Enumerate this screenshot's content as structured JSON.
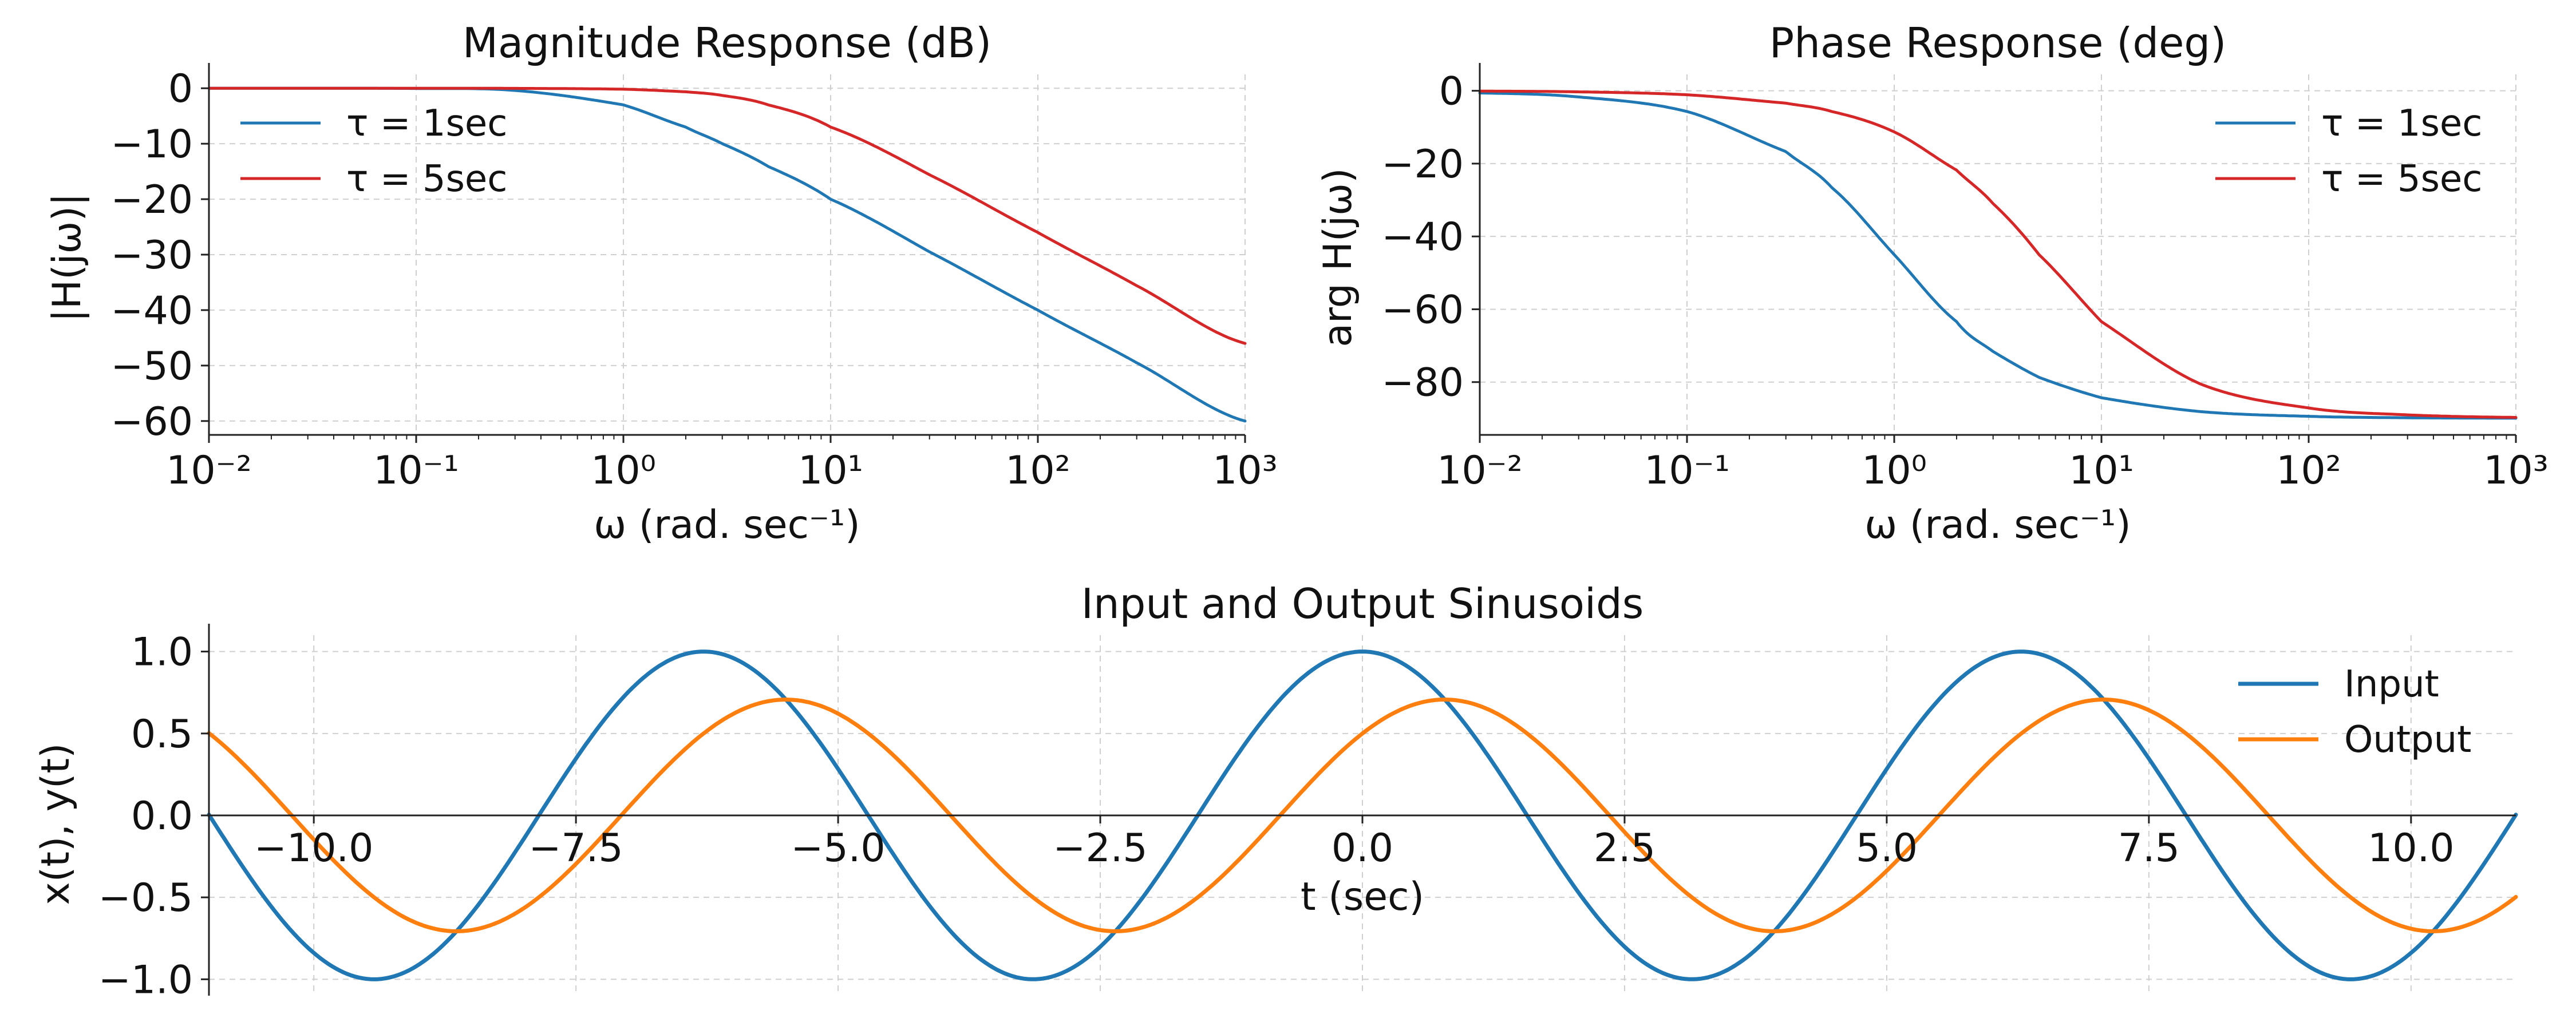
{
  "chart_data": [
    {
      "id": "magnitude",
      "type": "line",
      "title": "Magnitude Response (dB)",
      "xlabel": "ω (rad. sec⁻¹)",
      "ylabel": "|H(jω)|",
      "xscale": "log",
      "xlim": [
        0.01,
        1000
      ],
      "ylim": [
        -62.5,
        2.5
      ],
      "xticks": [
        0.01,
        0.1,
        1,
        10,
        100,
        1000
      ],
      "xtick_labels": [
        "10⁻²",
        "10⁻¹",
        "10⁰",
        "10¹",
        "10²",
        "10³"
      ],
      "yticks": [
        0,
        -10,
        -20,
        -30,
        -40,
        -50,
        -60
      ],
      "ytick_labels": [
        "0",
        "−10",
        "−20",
        "−30",
        "−40",
        "−50",
        "−60"
      ],
      "grid": true,
      "legend": "top-left",
      "series": [
        {
          "name": "τ = 1sec",
          "color": "#1f77b4",
          "x": [
            0.01,
            0.1,
            0.3,
            1,
            2,
            3,
            5,
            10,
            30,
            100,
            300,
            1000
          ],
          "y": [
            0,
            -0.04,
            -0.4,
            -3.0,
            -7.0,
            -10.0,
            -14.1,
            -20.0,
            -29.5,
            -40.0,
            -49.5,
            -60.0
          ]
        },
        {
          "name": "τ = 5sec",
          "color": "#d62728",
          "x": [
            0.01,
            0.1,
            0.3,
            1,
            2,
            3,
            5,
            10,
            30,
            100,
            300,
            1000
          ],
          "y": [
            0,
            -0.01,
            -0.02,
            -0.17,
            -0.64,
            -1.3,
            -3.0,
            -7.0,
            -15.6,
            -26.0,
            -35.6,
            -46.0
          ]
        }
      ]
    },
    {
      "id": "phase",
      "type": "line",
      "title": "Phase Response (deg)",
      "xlabel": "ω (rad. sec⁻¹)",
      "ylabel": "arg H(jω)",
      "xscale": "log",
      "xlim": [
        0.01,
        1000
      ],
      "ylim": [
        -94.5,
        4.5
      ],
      "xticks": [
        0.01,
        0.1,
        1,
        10,
        100,
        1000
      ],
      "xtick_labels": [
        "10⁻²",
        "10⁻¹",
        "10⁰",
        "10¹",
        "10²",
        "10³"
      ],
      "yticks": [
        0,
        -20,
        -40,
        -60,
        -80
      ],
      "ytick_labels": [
        "0",
        "−20",
        "−40",
        "−60",
        "−80"
      ],
      "grid": true,
      "legend": "top-right",
      "series": [
        {
          "name": "τ = 1sec",
          "color": "#1f77b4",
          "x": [
            0.01,
            0.03,
            0.1,
            0.3,
            0.5,
            1,
            2,
            3,
            5,
            10,
            30,
            100,
            300,
            1000
          ],
          "y": [
            -0.6,
            -1.7,
            -5.7,
            -16.7,
            -26.6,
            -45.0,
            -63.4,
            -71.6,
            -78.7,
            -84.3,
            -88.1,
            -89.4,
            -89.8,
            -89.9
          ]
        },
        {
          "name": "τ = 5sec",
          "color": "#d62728",
          "x": [
            0.01,
            0.03,
            0.1,
            0.3,
            0.5,
            1,
            2,
            3,
            5,
            10,
            30,
            100,
            300,
            1000
          ],
          "y": [
            -0.1,
            -0.3,
            -1.1,
            -3.4,
            -5.7,
            -11.3,
            -21.8,
            -31.0,
            -45.0,
            -63.4,
            -80.5,
            -87.1,
            -89.0,
            -89.7
          ]
        }
      ]
    },
    {
      "id": "sinusoids",
      "type": "line",
      "title": "Input and Output Sinusoids",
      "xlabel": "t (sec)",
      "ylabel": "x(t), y(t)",
      "xlim": [
        -11,
        11
      ],
      "ylim": [
        -1.1,
        1.1
      ],
      "xticks": [
        -10,
        -7.5,
        -5,
        -2.5,
        0,
        2.5,
        5,
        7.5,
        10
      ],
      "xtick_labels": [
        "−10.0",
        "−7.5",
        "−5.0",
        "−2.5",
        "0.0",
        "2.5",
        "5.0",
        "7.5",
        "10.0"
      ],
      "yticks": [
        1,
        0.5,
        0,
        -0.5,
        -1
      ],
      "ytick_labels": [
        "1.0",
        "0.5",
        "0.0",
        "−0.5",
        "−1.0"
      ],
      "grid": true,
      "legend": "top-right",
      "series": [
        {
          "name": "Input",
          "color": "#1f77b4",
          "amplitude": 1.0,
          "omega": 1.0,
          "phase_deg": 0
        },
        {
          "name": "Output",
          "color": "#ff7f0e",
          "amplitude": 0.707,
          "omega": 1.0,
          "phase_deg": -45
        }
      ]
    }
  ]
}
